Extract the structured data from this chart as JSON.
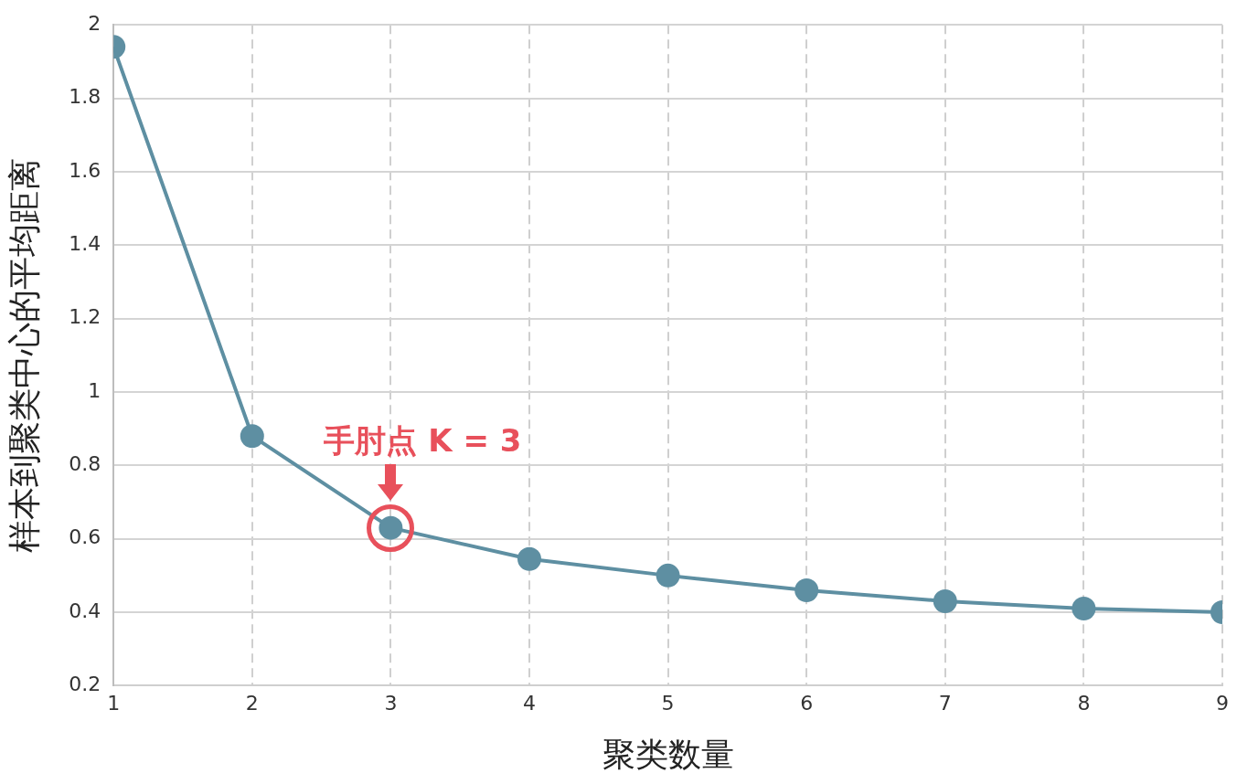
{
  "chart_data": {
    "type": "line",
    "xlabel": "聚类数量",
    "ylabel": "样本到聚类中心的平均距离",
    "x": [
      1,
      2,
      3,
      4,
      5,
      6,
      7,
      8,
      9
    ],
    "series": [
      {
        "color": "#5e8fa2",
        "values": [
          1.94,
          0.88,
          0.63,
          0.545,
          0.5,
          0.46,
          0.43,
          0.41,
          0.4
        ]
      }
    ],
    "xlim": [
      1,
      9
    ],
    "xticks": [
      1,
      2,
      3,
      4,
      5,
      6,
      7,
      8,
      9
    ],
    "ylim": [
      0.2,
      2
    ],
    "yticks": [
      0.2,
      0.4,
      0.6,
      0.8,
      1,
      1.2,
      1.4,
      1.6,
      1.8,
      2
    ],
    "grid": true,
    "legend": false,
    "marker": "circle",
    "line_style": "solid",
    "annotations": [
      {
        "text": "手肘点 K = 3",
        "x": 3,
        "y": 0.63
      }
    ]
  }
}
